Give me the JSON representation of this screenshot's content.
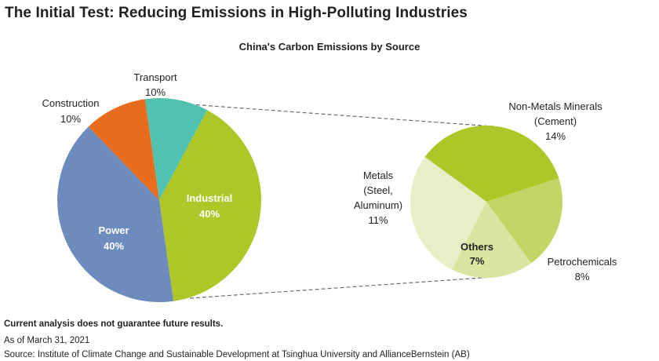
{
  "title": "The Initial Test: Reducing Emissions in High-Polluting Industries",
  "chart_data": [
    {
      "type": "pie",
      "title": "China's Carbon Emissions by Source",
      "series": [
        {
          "categories": [
            "Industrial",
            "Power",
            "Construction",
            "Transport"
          ],
          "values": [
            40,
            40,
            10,
            10
          ],
          "labels": [
            "40%",
            "40%",
            "10%",
            "10%"
          ],
          "colors": [
            "#afc628",
            "#6d8bbd",
            "#e86c1d",
            "#52c2b0"
          ]
        }
      ]
    },
    {
      "type": "pie",
      "title": "",
      "series": [
        {
          "categories": [
            "Non-Metals Minerals (Cement)",
            "Petrochemicals",
            "Others",
            "Metals (Steel, Aluminum)"
          ],
          "values": [
            14,
            8,
            7,
            11
          ],
          "labels": [
            "14%",
            "8%",
            "7%",
            "11%"
          ],
          "colors": [
            "#afc628",
            "#c5d565",
            "#dbe5a2",
            "#e9eec6"
          ]
        }
      ]
    }
  ],
  "labels": {
    "industrial": [
      "Industrial",
      "40%"
    ],
    "power": [
      "Power",
      "40%"
    ],
    "construction": [
      "Construction",
      "10%"
    ],
    "transport": [
      "Transport",
      "10%"
    ],
    "cement": [
      "Non-Metals Minerals",
      "(Cement)",
      "14%"
    ],
    "petro": [
      "Petrochemicals",
      "8%"
    ],
    "others": [
      "Others",
      "7%"
    ],
    "metals": [
      "Metals",
      "(Steel,",
      "Aluminum)",
      "11%"
    ]
  },
  "footer": {
    "disclaimer": "Current analysis does not guarantee future results.",
    "date": "As of March 31, 2021",
    "source": "Source: Institute of Climate Change and Sustainable Development at Tsinghua University and AllianceBernstein (AB)"
  }
}
